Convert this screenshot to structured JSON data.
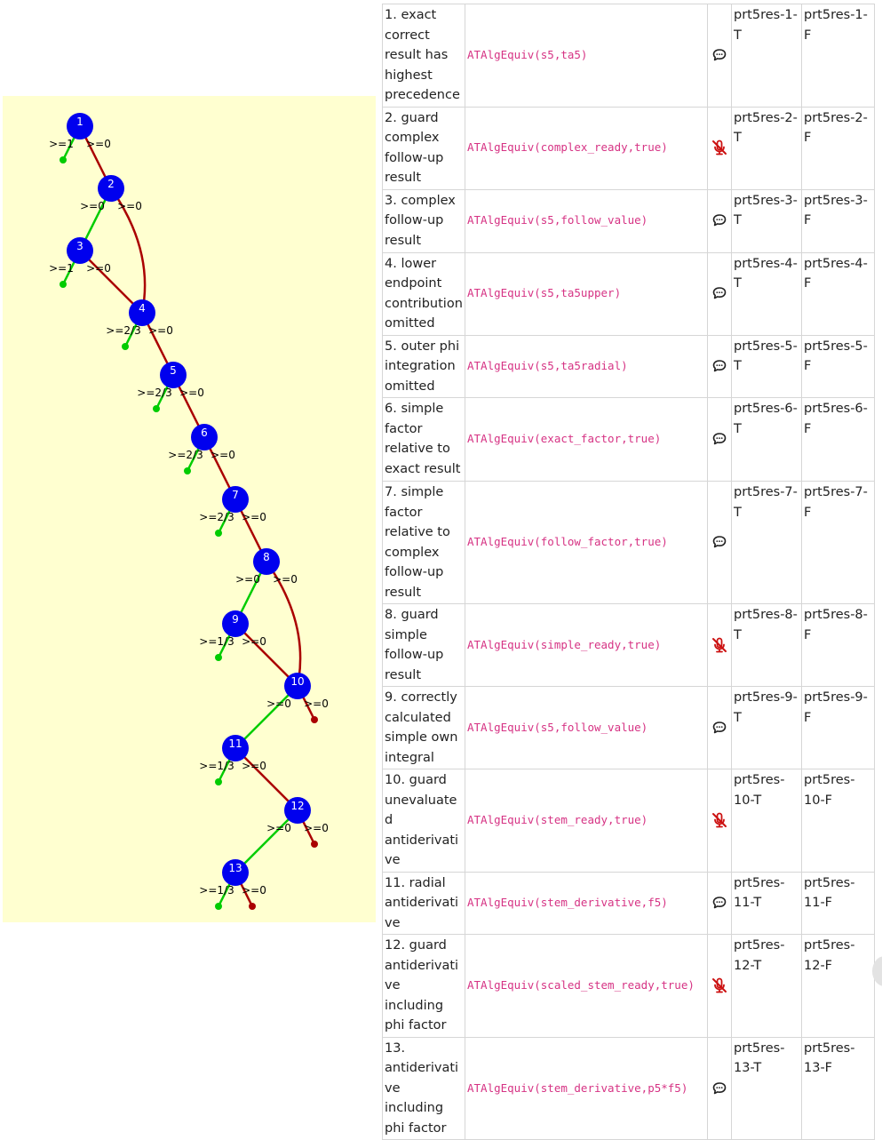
{
  "tree": {
    "nodes": [
      {
        "id": "1",
        "true_label": ">=1",
        "false_label": ">=0"
      },
      {
        "id": "2",
        "true_label": ">=0",
        "false_label": ">=0"
      },
      {
        "id": "3",
        "true_label": ">=1",
        "false_label": ">=0"
      },
      {
        "id": "4",
        "true_label": ">=2/3",
        "false_label": ">=0"
      },
      {
        "id": "5",
        "true_label": ">=2/3",
        "false_label": ">=0"
      },
      {
        "id": "6",
        "true_label": ">=2/3",
        "false_label": ">=0"
      },
      {
        "id": "7",
        "true_label": ">=2/3",
        "false_label": ">=0"
      },
      {
        "id": "8",
        "true_label": ">=0",
        "false_label": ">=0"
      },
      {
        "id": "9",
        "true_label": ">=1/3",
        "false_label": ">=0"
      },
      {
        "id": "10",
        "true_label": ">=0",
        "false_label": ">=0"
      },
      {
        "id": "11",
        "true_label": ">=1/3",
        "false_label": ">=0"
      },
      {
        "id": "12",
        "true_label": ">=0",
        "false_label": ">=0"
      },
      {
        "id": "13",
        "true_label": ">=1/3",
        "false_label": ">=0"
      }
    ],
    "colors": {
      "true": "#00cc00",
      "false": "#aa0000",
      "node": "#0000ee"
    }
  },
  "table": {
    "rows": [
      {
        "desc": "1. exact correct result has highest precedence",
        "test": "ATAlgEquiv(s5,ta5)",
        "feedback_icon": "speech-bubble-icon",
        "true_note": "prt5res-1-T",
        "false_note": "prt5res-1-F"
      },
      {
        "desc": "2. guard complex follow-up result",
        "test": "ATAlgEquiv(complex_ready,true)",
        "feedback_icon": "mute-icon",
        "true_note": "prt5res-2-T",
        "false_note": "prt5res-2-F"
      },
      {
        "desc": "3. complex follow-up result",
        "test": "ATAlgEquiv(s5,follow_value)",
        "feedback_icon": "speech-bubble-icon",
        "true_note": "prt5res-3-T",
        "false_note": "prt5res-3-F"
      },
      {
        "desc": "4. lower endpoint contribution omitted",
        "test": "ATAlgEquiv(s5,ta5upper)",
        "feedback_icon": "speech-bubble-icon",
        "true_note": "prt5res-4-T",
        "false_note": "prt5res-4-F"
      },
      {
        "desc": "5. outer phi integration omitted",
        "test": "ATAlgEquiv(s5,ta5radial)",
        "feedback_icon": "speech-bubble-icon",
        "true_note": "prt5res-5-T",
        "false_note": "prt5res-5-F"
      },
      {
        "desc": "6. simple factor relative to exact result",
        "test": "ATAlgEquiv(exact_factor,true)",
        "feedback_icon": "speech-bubble-icon",
        "true_note": "prt5res-6-T",
        "false_note": "prt5res-6-F"
      },
      {
        "desc": "7. simple factor relative to complex follow-up result",
        "test": "ATAlgEquiv(follow_factor,true)",
        "feedback_icon": "speech-bubble-icon",
        "true_note": "prt5res-7-T",
        "false_note": "prt5res-7-F"
      },
      {
        "desc": "8. guard simple follow-up result",
        "test": "ATAlgEquiv(simple_ready,true)",
        "feedback_icon": "mute-icon",
        "true_note": "prt5res-8-T",
        "false_note": "prt5res-8-F"
      },
      {
        "desc": "9. correctly calculated simple own integral",
        "test": "ATAlgEquiv(s5,follow_value)",
        "feedback_icon": "speech-bubble-icon",
        "true_note": "prt5res-9-T",
        "false_note": "prt5res-9-F"
      },
      {
        "desc": "10. guard unevaluated antiderivative",
        "test": "ATAlgEquiv(stem_ready,true)",
        "feedback_icon": "mute-icon",
        "true_note": "prt5res-10-T",
        "false_note": "prt5res-10-F"
      },
      {
        "desc": "11. radial antiderivative",
        "test": "ATAlgEquiv(stem_derivative,f5)",
        "feedback_icon": "speech-bubble-icon",
        "true_note": "prt5res-11-T",
        "false_note": "prt5res-11-F"
      },
      {
        "desc": "12. guard antiderivative including phi factor",
        "test": "ATAlgEquiv(scaled_stem_ready,true)",
        "feedback_icon": "mute-icon",
        "true_note": "prt5res-12-T",
        "false_note": "prt5res-12-F"
      },
      {
        "desc": "13. antiderivative including phi factor",
        "test": "ATAlgEquiv(stem_derivative,p5*f5)",
        "feedback_icon": "speech-bubble-icon",
        "true_note": "prt5res-13-T",
        "false_note": "prt5res-13-F"
      }
    ]
  }
}
